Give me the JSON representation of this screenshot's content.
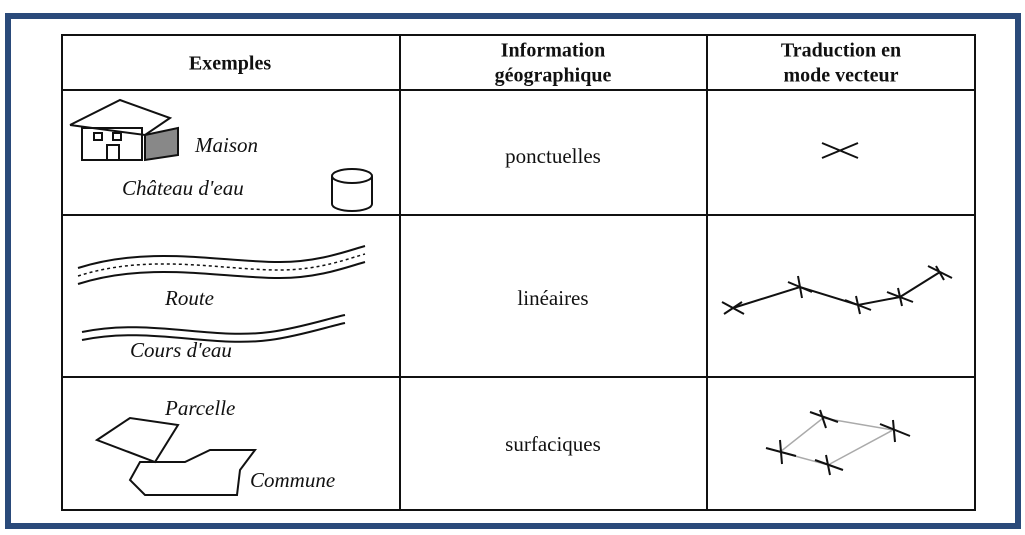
{
  "table": {
    "columns": [
      [
        "Exemples"
      ],
      [
        "Information",
        "géographique"
      ],
      [
        "Traduction en",
        "mode vecteur"
      ]
    ],
    "rows": [
      {
        "examples": [
          "Maison",
          "Château d'eau"
        ],
        "information": "ponctuelles"
      },
      {
        "examples": [
          "Route",
          "Cours d'eau"
        ],
        "information": "linéaires"
      },
      {
        "examples": [
          "Parcelle",
          "Commune"
        ],
        "information": "surfaciques"
      }
    ]
  }
}
